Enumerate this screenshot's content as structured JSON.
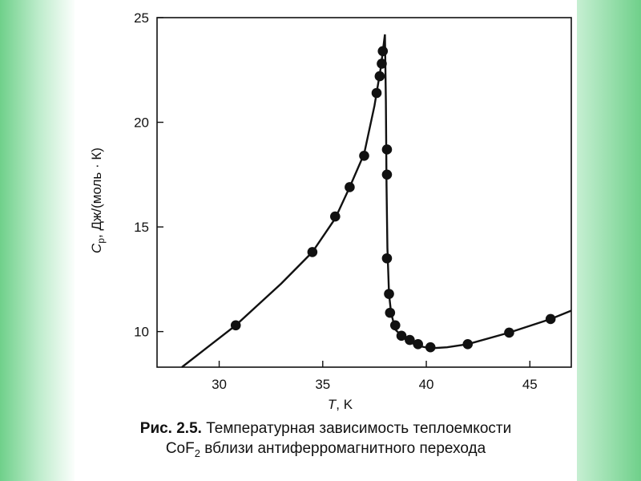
{
  "chart_data": {
    "type": "scatter",
    "title": "",
    "xlabel_var": "T",
    "xlabel_unit": ", K",
    "ylabel_var": "C",
    "ylabel_sub": "p",
    "ylabel_unit": ", Дж/(моль · К)",
    "xlim": [
      27,
      47
    ],
    "ylim": [
      8.3,
      25
    ],
    "xticks": [
      30,
      35,
      40,
      45
    ],
    "yticks": [
      10,
      15,
      20,
      25
    ],
    "grid": false,
    "legend": "none",
    "points": {
      "x": [
        30.8,
        34.5,
        35.6,
        36.3,
        37.0,
        37.6,
        37.75,
        37.85,
        37.9,
        38.1,
        38.1,
        38.1,
        38.2,
        38.25,
        38.5,
        38.8,
        39.2,
        39.6,
        40.2,
        42.0,
        44.0,
        46.0
      ],
      "y": [
        10.3,
        13.8,
        15.5,
        16.9,
        18.4,
        21.4,
        22.2,
        22.8,
        23.4,
        18.7,
        17.5,
        13.5,
        11.8,
        10.9,
        10.3,
        9.8,
        9.6,
        9.4,
        9.25,
        9.4,
        9.95,
        10.6
      ]
    },
    "curve": {
      "x": [
        28.2,
        30.8,
        33.0,
        34.5,
        35.6,
        36.3,
        37.0,
        37.5,
        37.8,
        38.0,
        38.05,
        38.08,
        38.12,
        38.2,
        38.3,
        38.5,
        38.9,
        39.3,
        39.7,
        40.2,
        41.0,
        42.0,
        44.0,
        46.0,
        47.0
      ],
      "y": [
        8.3,
        10.3,
        12.3,
        13.8,
        15.4,
        16.9,
        18.5,
        20.8,
        22.6,
        24.2,
        21.0,
        17.0,
        14.0,
        11.8,
        10.9,
        10.1,
        9.7,
        9.45,
        9.3,
        9.2,
        9.25,
        9.4,
        9.95,
        10.6,
        11.0
      ]
    },
    "colors": {
      "ink": "#111111"
    }
  },
  "caption": {
    "lead": "Рис. 2.5.",
    "line1": " Температурная зависимость теплоемкости",
    "line2_pre": "CoF",
    "line2_sub": "2",
    "line2_post": " вблизи антиферромагнитного перехода"
  }
}
